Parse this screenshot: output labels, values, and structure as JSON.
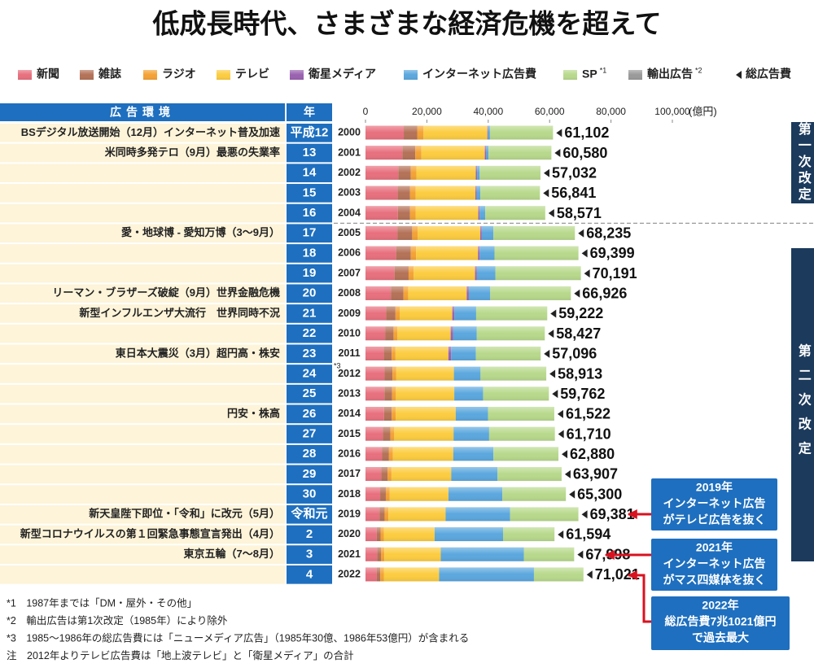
{
  "chart_data": {
    "type": "bar",
    "orientation": "horizontal",
    "stacked": true,
    "title": "低成長時代、さまざまな経済危機を超えて",
    "header_events": "広告環境",
    "header_year": "年",
    "x_label": "(億円)",
    "xlim": [
      0,
      100000
    ],
    "xticks": [
      0,
      {
        "value": 20000,
        "label": "20,000"
      },
      {
        "value": 40000,
        "label": "40,000"
      },
      {
        "value": 60000,
        "label": "60,000"
      },
      {
        "value": 80000,
        "label": "80,000"
      },
      {
        "value": 100000,
        "label": "100,000"
      }
    ],
    "categories": [
      "2000",
      "2001",
      "2002",
      "2003",
      "2004",
      "2005",
      "2006",
      "2007",
      "2008",
      "2009",
      "2010",
      "2011",
      "2012",
      "2013",
      "2014",
      "2015",
      "2016",
      "2017",
      "2018",
      "2019",
      "2020",
      "2021",
      "2022"
    ],
    "category_notes": [
      null,
      null,
      null,
      null,
      null,
      null,
      null,
      null,
      null,
      null,
      null,
      null,
      "*3",
      null,
      null,
      null,
      null,
      null,
      null,
      null,
      null,
      null,
      null
    ],
    "era_years": [
      "平成12",
      "13",
      "14",
      "15",
      "16",
      "17",
      "18",
      "19",
      "20",
      "21",
      "22",
      "23",
      "24",
      "25",
      "26",
      "27",
      "28",
      "29",
      "30",
      "令和元",
      "2",
      "3",
      "4"
    ],
    "events": [
      "BSデジタル放送開始（12月）インターネット普及加速",
      "米同時多発テロ（9月）最悪の失業率",
      null,
      null,
      null,
      "愛・地球博 - 愛知万博（3〜9月）",
      null,
      null,
      "リーマン・ブラザーズ破綻（9月）世界金融危機",
      "新型インフルエンザ大流行　世界同時不況",
      null,
      "東日本大震災（3月）超円高・株安",
      null,
      null,
      "円安・株高",
      null,
      null,
      null,
      null,
      "新天皇陛下即位・「令和」に改元（5月）",
      "新型コロナウイルスの第１回緊急事態宣言発出（4月）",
      "東京五輪（7〜8月）",
      null
    ],
    "series": [
      {
        "name": "新聞",
        "color": "#e8707e",
        "values": [
          12474,
          12027,
          10707,
          10500,
          10559,
          10377,
          9986,
          9462,
          8276,
          6739,
          6396,
          5990,
          6242,
          6170,
          6057,
          5679,
          5431,
          5147,
          4784,
          4547,
          3688,
          3815,
          3697
        ]
      },
      {
        "name": "雑誌",
        "color": "#b47258",
        "values": [
          4369,
          4180,
          4051,
          4035,
          3970,
          4842,
          4777,
          4585,
          4078,
          3034,
          2733,
          2542,
          2551,
          2499,
          2500,
          2443,
          2223,
          2023,
          1841,
          1675,
          1223,
          1224,
          1140
        ]
      },
      {
        "name": "ラジオ",
        "color": "#f4a234",
        "values": [
          2071,
          1998,
          1837,
          1807,
          1795,
          1778,
          1744,
          1671,
          1549,
          1370,
          1299,
          1247,
          1246,
          1243,
          1272,
          1254,
          1285,
          1290,
          1278,
          1260,
          1066,
          1106,
          1129
        ]
      },
      {
        "name": "テレビ",
        "color": "#fccc40",
        "values": [
          20793,
          20681,
          19351,
          19480,
          20436,
          20411,
          20161,
          19981,
          19092,
          17139,
          17321,
          17237,
          18770,
          19023,
          19564,
          19323,
          19657,
          19478,
          19123,
          18612,
          16559,
          18393,
          18019
        ]
      },
      {
        "name": "衛星メディア",
        "color": "#9a62b0",
        "values": [
          266,
          471,
          424,
          419,
          436,
          487,
          544,
          603,
          676,
          709,
          784,
          891,
          null,
          null,
          null,
          null,
          null,
          null,
          null,
          null,
          null,
          null,
          null
        ]
      },
      {
        "name": "インターネット広告費",
        "color": "#5ba7de",
        "values": [
          590,
          735,
          845,
          1183,
          1814,
          3777,
          4826,
          6003,
          6983,
          7069,
          7747,
          8062,
          8680,
          9381,
          10519,
          11594,
          13100,
          15094,
          17589,
          21048,
          22290,
          27052,
          30912
        ]
      },
      {
        "name": "SP",
        "note": "*1",
        "color": "#b8d98c",
        "values": [
          20539,
          20488,
          19817,
          19417,
          19561,
          26563,
          27361,
          27886,
          26272,
          23162,
          22147,
          21127,
          21424,
          21446,
          21610,
          21417,
          21184,
          20875,
          20685,
          22239,
          16768,
          16408,
          16124
        ]
      },
      {
        "name": "輸出広告",
        "note": "*2",
        "color": "#9a9a9a",
        "values": [
          null,
          null,
          null,
          null,
          null,
          null,
          null,
          null,
          null,
          null,
          null,
          null,
          null,
          null,
          null,
          null,
          null,
          null,
          null,
          null,
          null,
          null,
          null
        ]
      }
    ],
    "total": {
      "name": "総広告費",
      "color": "#222222",
      "values": [
        61102,
        60580,
        57032,
        56841,
        58571,
        68235,
        69399,
        70191,
        66926,
        59222,
        58427,
        57096,
        58913,
        59762,
        61522,
        61710,
        62880,
        63907,
        65300,
        69381,
        61594,
        67998,
        71021
      ],
      "value_labels": [
        "61,102",
        "60,580",
        "57,032",
        "56,841",
        "58,571",
        "68,235",
        "69,399",
        "70,191",
        "66,926",
        "59,222",
        "58,427",
        "57,096",
        "58,913",
        "59,762",
        "61,522",
        "61,710",
        "62,880",
        "63,907",
        "65,300",
        "69,381",
        "61,594",
        "67,998",
        "71,021"
      ]
    },
    "revisions": [
      "第一次改定",
      "第二次改定"
    ],
    "annotations": [
      {
        "lines": [
          "2019年",
          "インターネット広告",
          "がテレビ広告を抜く"
        ]
      },
      {
        "lines": [
          "2021年",
          "インターネット広告",
          "がマス四媒体を抜く"
        ]
      },
      {
        "lines": [
          "2022年",
          "総広告費7兆1021億円",
          "で過去最大"
        ]
      }
    ],
    "footnotes": [
      "*1　1987年までは「DM・屋外・その他」",
      "*2　輸出広告は第1次改定（1985年）により除外",
      "*3　1985〜1986年の総広告費には「ニューメディア広告」（1985年30億、1986年53億円）が含まれる",
      "注　2012年よりテレビ広告費は「地上波テレビ」と「衛星メディア」の合計"
    ]
  }
}
